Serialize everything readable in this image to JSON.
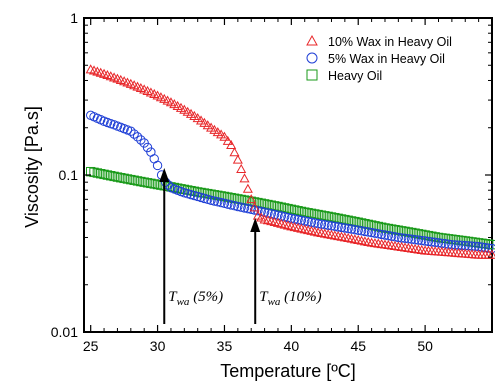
{
  "chart_data": {
    "type": "scatter",
    "xlabel": "Temperature [ºC]",
    "ylabel": "Viscosity [Pa.s]",
    "xlim": [
      24.5,
      55
    ],
    "ylim": [
      0.01,
      1
    ],
    "yscale": "log",
    "x_ticks": [
      25,
      30,
      35,
      40,
      45,
      50
    ],
    "y_ticks": [
      {
        "value": 0.01,
        "label": "0.01"
      },
      {
        "value": 0.1,
        "label": "0.1"
      },
      {
        "value": 1,
        "label": "1"
      }
    ],
    "legend_position": "top-right",
    "series": [
      {
        "name": "10% Wax in Heavy Oil",
        "marker": "triangle",
        "color": "#e8272a",
        "points": [
          [
            25,
            0.47
          ],
          [
            26,
            0.44
          ],
          [
            27,
            0.41
          ],
          [
            28,
            0.38
          ],
          [
            29,
            0.35
          ],
          [
            30,
            0.32
          ],
          [
            31,
            0.29
          ],
          [
            32,
            0.26
          ],
          [
            33,
            0.23
          ],
          [
            34,
            0.2
          ],
          [
            35,
            0.175
          ],
          [
            35.5,
            0.155
          ],
          [
            36,
            0.125
          ],
          [
            36.5,
            0.095
          ],
          [
            37,
            0.07
          ],
          [
            37.5,
            0.055
          ],
          [
            38,
            0.052
          ],
          [
            40,
            0.047
          ],
          [
            42,
            0.043
          ],
          [
            44,
            0.04
          ],
          [
            46,
            0.037
          ],
          [
            48,
            0.035
          ],
          [
            50,
            0.033
          ],
          [
            52,
            0.032
          ],
          [
            54,
            0.031
          ],
          [
            55,
            0.031
          ]
        ]
      },
      {
        "name": "5% Wax in Heavy Oil",
        "marker": "circle",
        "color": "#1f3fd6",
        "points": [
          [
            25,
            0.24
          ],
          [
            26,
            0.22
          ],
          [
            27,
            0.205
          ],
          [
            28,
            0.19
          ],
          [
            28.5,
            0.175
          ],
          [
            29,
            0.16
          ],
          [
            29.5,
            0.14
          ],
          [
            30,
            0.115
          ],
          [
            30.3,
            0.1
          ],
          [
            30.6,
            0.09
          ],
          [
            31,
            0.083
          ],
          [
            32,
            0.077
          ],
          [
            33,
            0.073
          ],
          [
            34,
            0.069
          ],
          [
            35,
            0.066
          ],
          [
            36,
            0.063
          ],
          [
            38,
            0.058
          ],
          [
            40,
            0.053
          ],
          [
            42,
            0.049
          ],
          [
            44,
            0.046
          ],
          [
            46,
            0.043
          ],
          [
            48,
            0.04
          ],
          [
            50,
            0.038
          ],
          [
            52,
            0.036
          ],
          [
            54,
            0.035
          ],
          [
            55,
            0.034
          ]
        ]
      },
      {
        "name": "Heavy Oil",
        "marker": "square",
        "color": "#1a9a1a",
        "points": [
          [
            25,
            0.105
          ],
          [
            27,
            0.097
          ],
          [
            29,
            0.09
          ],
          [
            31,
            0.084
          ],
          [
            33,
            0.078
          ],
          [
            35,
            0.073
          ],
          [
            37,
            0.068
          ],
          [
            39,
            0.063
          ],
          [
            41,
            0.058
          ],
          [
            43,
            0.054
          ],
          [
            45,
            0.05
          ],
          [
            47,
            0.046
          ],
          [
            49,
            0.043
          ],
          [
            51,
            0.04
          ],
          [
            53,
            0.038
          ],
          [
            55,
            0.036
          ]
        ]
      }
    ],
    "annotations": [
      {
        "main": "T",
        "sub": "wa",
        "rest": " (5%)",
        "x": 30.5
      },
      {
        "main": "T",
        "sub": "wa",
        "rest": " (10%)",
        "x": 37.3
      }
    ]
  }
}
